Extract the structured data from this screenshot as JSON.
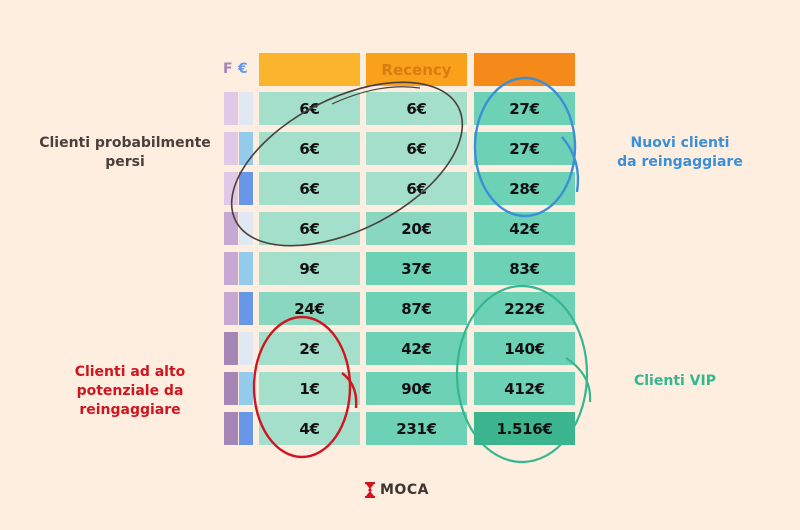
{
  "chart": {
    "axis_labels": {
      "frequency": "F",
      "monetary": "€",
      "recency": "Recency"
    },
    "header_colors": [
      "#fbb52d",
      "#f9a11b",
      "#f5891a"
    ],
    "recency_label_color": "#d77d10",
    "f_colors": [
      "#e0c9e6",
      "#c6a8d2",
      "#a585b6"
    ],
    "e_colors": [
      "#e0e8f1",
      "#94cbeb",
      "#6797e6"
    ],
    "rows": [
      {
        "f": 0,
        "e": 0,
        "values": [
          "6€",
          "6€",
          "27€"
        ],
        "shades": [
          0,
          0,
          2
        ]
      },
      {
        "f": 0,
        "e": 1,
        "values": [
          "6€",
          "6€",
          "27€"
        ],
        "shades": [
          0,
          0,
          2
        ]
      },
      {
        "f": 0,
        "e": 2,
        "values": [
          "6€",
          "6€",
          "28€"
        ],
        "shades": [
          0,
          0,
          2
        ]
      },
      {
        "f": 1,
        "e": 0,
        "values": [
          "6€",
          "20€",
          "42€"
        ],
        "shades": [
          0,
          1,
          2
        ]
      },
      {
        "f": 1,
        "e": 1,
        "values": [
          "9€",
          "37€",
          "83€"
        ],
        "shades": [
          0,
          2,
          2
        ]
      },
      {
        "f": 1,
        "e": 2,
        "values": [
          "24€",
          "87€",
          "222€"
        ],
        "shades": [
          1,
          2,
          2
        ]
      },
      {
        "f": 2,
        "e": 0,
        "values": [
          "2€",
          "42€",
          "140€"
        ],
        "shades": [
          0,
          2,
          2
        ]
      },
      {
        "f": 2,
        "e": 1,
        "values": [
          "1€",
          "90€",
          "412€"
        ],
        "shades": [
          0,
          2,
          2
        ]
      },
      {
        "f": 2,
        "e": 2,
        "values": [
          "4€",
          "231€",
          "1.516€"
        ],
        "shades": [
          0,
          2,
          3
        ]
      }
    ],
    "cell_shades": [
      "#a3dfcb",
      "#88d7be",
      "#6dd1b5",
      "#3cb58f"
    ]
  },
  "annotations": {
    "lost": {
      "label_line1": "Clienti probabilmente",
      "label_line2": "persi",
      "color": "#4a3f3b"
    },
    "new": {
      "label_line1": "Nuovi clienti",
      "label_line2": "da reingaggiare",
      "color": "#3b8fd6"
    },
    "high_potential": {
      "label_line1": "Clienti ad alto",
      "label_line2": "potenziale da",
      "label_line3": "reingaggiare",
      "color": "#d1141f"
    },
    "vip": {
      "label_line1": "Clienti VIP",
      "color": "#35b68e"
    }
  },
  "logo": {
    "text": "MOCA",
    "color": "#d1141f"
  }
}
